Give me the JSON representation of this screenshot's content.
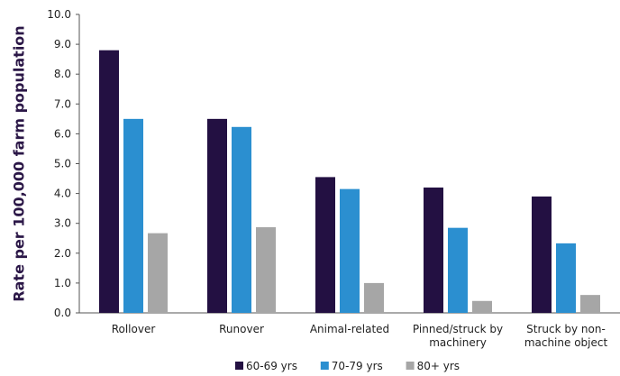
{
  "chart_data": {
    "type": "bar",
    "title": "",
    "xlabel": "",
    "ylabel": "Rate per 100,000 farm population",
    "ylim": [
      0,
      10
    ],
    "yticks": [
      "0.0",
      "1.0",
      "2.0",
      "3.0",
      "4.0",
      "5.0",
      "6.0",
      "7.0",
      "8.0",
      "9.0",
      "10.0"
    ],
    "categories": [
      [
        "Rollover"
      ],
      [
        "Runover"
      ],
      [
        "Animal-related"
      ],
      [
        "Pinned/struck by",
        "machinery"
      ],
      [
        "Struck by non-",
        "machine object"
      ]
    ],
    "series": [
      {
        "name": "60-69 yrs",
        "color": "#231042",
        "values": [
          8.8,
          6.5,
          4.55,
          4.2,
          3.9
        ]
      },
      {
        "name": "70-79 yrs",
        "color": "#2b8fd0",
        "values": [
          6.5,
          6.23,
          4.15,
          2.85,
          2.33
        ]
      },
      {
        "name": "80+ yrs",
        "color": "#a6a6a6",
        "values": [
          2.67,
          2.87,
          1.0,
          0.4,
          0.6
        ]
      }
    ],
    "grid": false,
    "legend": "bottom"
  }
}
